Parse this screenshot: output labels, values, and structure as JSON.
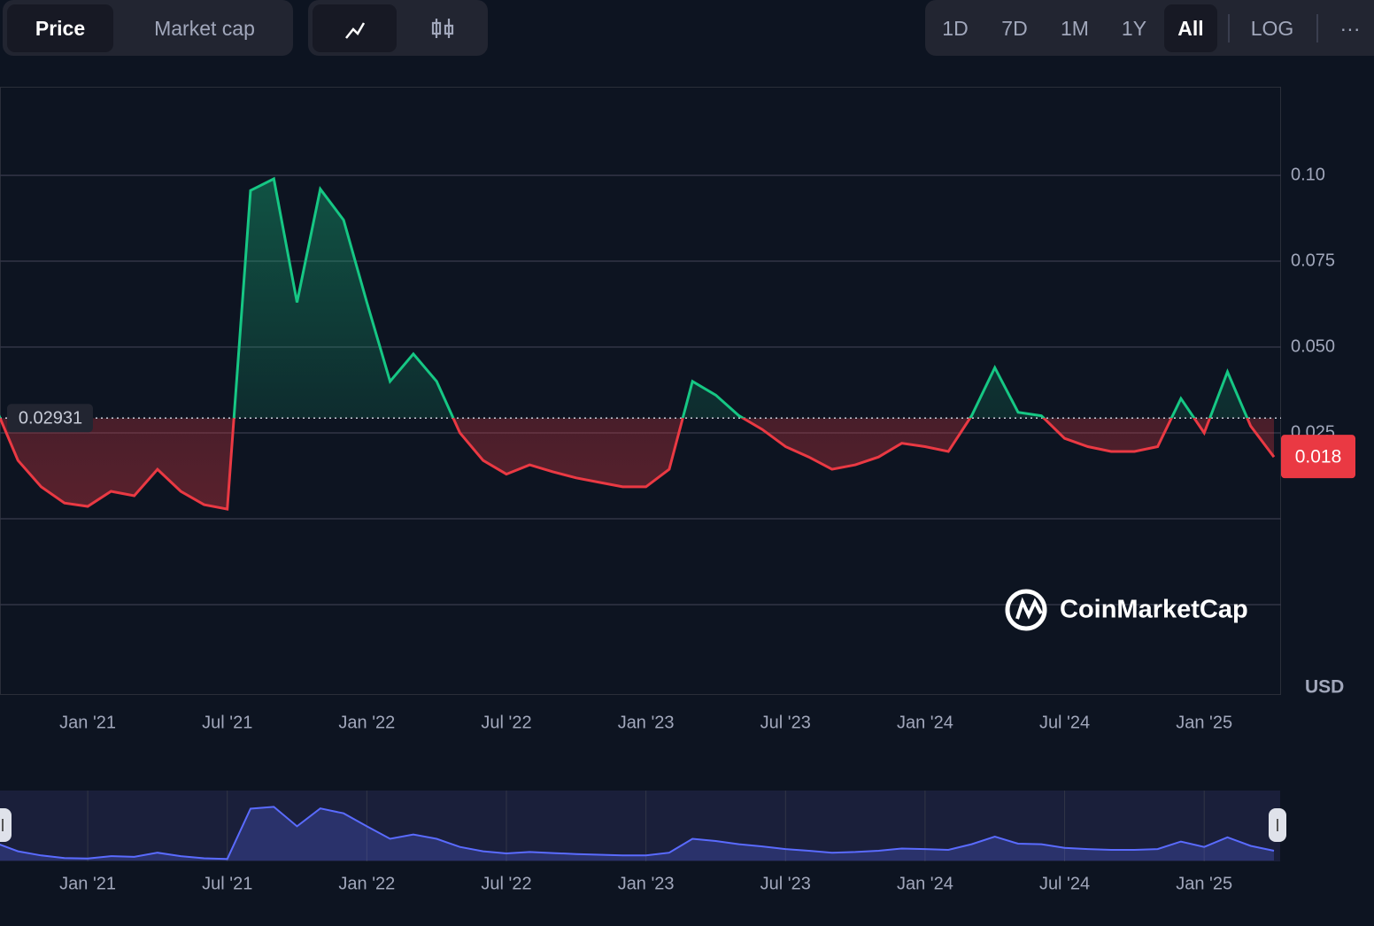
{
  "toolbar": {
    "view": [
      "Price",
      "Market cap"
    ],
    "ranges": [
      "1D",
      "7D",
      "1M",
      "1Y",
      "All"
    ],
    "scale": "LOG",
    "more": "···"
  },
  "watermark": "CoinMarketCap",
  "chart_data": {
    "type": "line",
    "unit": "USD",
    "x": [
      "2020-09",
      "2020-10",
      "2020-11",
      "2020-12",
      "2021-01",
      "2021-02",
      "2021-03",
      "2021-04",
      "2021-05",
      "2021-06",
      "2021-07",
      "2021-08",
      "2021-09",
      "2021-10",
      "2021-11",
      "2021-12",
      "2022-01",
      "2022-02",
      "2022-03",
      "2022-04",
      "2022-05",
      "2022-06",
      "2022-07",
      "2022-08",
      "2022-09",
      "2022-10",
      "2022-11",
      "2022-12",
      "2023-01",
      "2023-02",
      "2023-03",
      "2023-04",
      "2023-05",
      "2023-06",
      "2023-07",
      "2023-08",
      "2023-09",
      "2023-10",
      "2023-11",
      "2023-12",
      "2024-01",
      "2024-02",
      "2024-03",
      "2024-04",
      "2024-05",
      "2024-06",
      "2024-07",
      "2024-08",
      "2024-09",
      "2024-10",
      "2024-11",
      "2024-12",
      "2025-01",
      "2025-02",
      "2025-03",
      "2025-04"
    ],
    "values": [
      0.033,
      0.017,
      0.0093,
      0.0046,
      0.0036,
      0.008,
      0.0067,
      0.0144,
      0.008,
      0.0041,
      0.0028,
      0.0956,
      0.099,
      0.063,
      0.096,
      0.087,
      0.063,
      0.04,
      0.048,
      0.04,
      0.025,
      0.017,
      0.013,
      0.0157,
      0.0137,
      0.0119,
      0.0106,
      0.0093,
      0.0093,
      0.0144,
      0.04,
      0.036,
      0.03,
      0.026,
      0.021,
      0.018,
      0.0144,
      0.0157,
      0.018,
      0.022,
      0.021,
      0.0196,
      0.03,
      0.044,
      0.031,
      0.03,
      0.0234,
      0.021,
      0.0196,
      0.0196,
      0.021,
      0.035,
      0.025,
      0.0428,
      0.027,
      0.018
    ],
    "color_up": "#16c784",
    "color_down": "#ea3943",
    "navigator_color": "#5a6bff",
    "baseline": 0.02931,
    "last_price": 0.018,
    "xlim": [
      "2020-09",
      "2025-04"
    ],
    "xticks": [
      {
        "value": "2021-01",
        "label": "Jan '21"
      },
      {
        "value": "2021-07",
        "label": "Jul '21"
      },
      {
        "value": "2022-01",
        "label": "Jan '22"
      },
      {
        "value": "2022-07",
        "label": "Jul '22"
      },
      {
        "value": "2023-01",
        "label": "Jan '23"
      },
      {
        "value": "2023-07",
        "label": "Jul '23"
      },
      {
        "value": "2024-01",
        "label": "Jan '24"
      },
      {
        "value": "2024-07",
        "label": "Jul '24"
      },
      {
        "value": "2025-01",
        "label": "Jan '25"
      }
    ],
    "ylim": [
      -0.0513,
      0.1258
    ],
    "yticks": [
      {
        "value": 0.1,
        "label": "0.10"
      },
      0.075,
      {
        "value": 0.05,
        "label": "0.050"
      },
      0.025,
      {
        "value": 0,
        "label": null
      },
      {
        "value": -0.025,
        "label": null
      }
    ],
    "grid": true
  }
}
